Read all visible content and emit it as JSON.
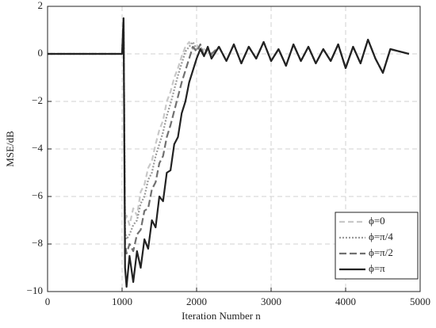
{
  "chart_data": {
    "type": "line",
    "x_label": "Iteration Number n",
    "y_label": "MSE/dB",
    "x": [
      0,
      1000,
      1020,
      1040,
      1060,
      1100,
      1150,
      1200,
      1250,
      1300,
      1350,
      1400,
      1450,
      1500,
      1550,
      1600,
      1650,
      1700,
      1750,
      1800,
      1850,
      1900,
      1950,
      2000,
      2050,
      2100,
      2150,
      2200,
      2300,
      2400,
      2500,
      2600,
      2700,
      2800,
      2900,
      3000,
      3100,
      3200,
      3300,
      3400,
      3500,
      3600,
      3700,
      3800,
      3900,
      4000,
      4100,
      4200,
      4300,
      4400,
      4500,
      4600,
      4850
    ],
    "series": [
      {
        "name": "ϕ=0",
        "color": "#c8c8c8",
        "dash": "7,4",
        "values": [
          0,
          0,
          1.5,
          -7.0,
          -6.8,
          -7.2,
          -6.5,
          -6.8,
          -5.8,
          -5.5,
          -4.8,
          -4.5,
          -3.8,
          -3.2,
          -2.8,
          -2.0,
          -1.6,
          -1.0,
          -0.6,
          -0.1,
          0.3,
          0.5,
          0.2,
          0.4,
          0.1,
          0.2,
          0.1,
          -0.1,
          0.3,
          -0.3,
          0.4,
          -0.4,
          0.3,
          -0.2,
          0.5,
          -0.3,
          0.2,
          -0.5,
          0.4,
          -0.3,
          0.3,
          -0.4,
          0.2,
          -0.3,
          0.4,
          -0.6,
          0.3,
          -0.4,
          0.6,
          -0.2,
          -0.8,
          0.2,
          0
        ]
      },
      {
        "name": "ϕ=π/4",
        "color": "#9a9a9a",
        "dash": "2,2",
        "values": [
          0,
          0,
          1.5,
          -7.5,
          -7.8,
          -7.6,
          -7.2,
          -7.0,
          -6.3,
          -6.0,
          -5.3,
          -5.0,
          -4.3,
          -3.8,
          -3.3,
          -2.6,
          -2.1,
          -1.5,
          -0.9,
          -0.4,
          0.1,
          0.3,
          0.5,
          0.2,
          0.3,
          0.0,
          0.2,
          -0.1,
          0.3,
          -0.3,
          0.4,
          -0.4,
          0.3,
          -0.2,
          0.5,
          -0.3,
          0.2,
          -0.5,
          0.4,
          -0.3,
          0.3,
          -0.4,
          0.2,
          -0.3,
          0.4,
          -0.6,
          0.3,
          -0.4,
          0.6,
          -0.2,
          -0.8,
          0.2,
          0
        ]
      },
      {
        "name": "ϕ=π/2",
        "color": "#707070",
        "dash": "9,4",
        "values": [
          0,
          0,
          1.5,
          -8.0,
          -8.4,
          -8.0,
          -8.3,
          -7.6,
          -7.4,
          -6.6,
          -6.5,
          -5.7,
          -5.4,
          -4.6,
          -4.3,
          -3.5,
          -3.0,
          -2.4,
          -1.8,
          -1.2,
          -0.7,
          -0.2,
          0.3,
          0.1,
          0.4,
          -0.1,
          0.2,
          0.0,
          0.3,
          -0.3,
          0.4,
          -0.4,
          0.3,
          -0.2,
          0.5,
          -0.3,
          0.2,
          -0.5,
          0.4,
          -0.3,
          0.3,
          -0.4,
          0.2,
          -0.3,
          0.4,
          -0.6,
          0.3,
          -0.4,
          0.6,
          -0.2,
          -0.8,
          0.2,
          0
        ]
      },
      {
        "name": "ϕ=π",
        "color": "#222222",
        "dash": "none",
        "values": [
          0,
          0,
          1.5,
          -9.0,
          -9.8,
          -8.5,
          -9.6,
          -8.3,
          -9.0,
          -7.8,
          -8.2,
          -7.0,
          -7.3,
          -6.0,
          -6.2,
          -5.0,
          -4.9,
          -3.8,
          -3.5,
          -2.5,
          -2.0,
          -1.2,
          -0.7,
          -0.2,
          0.2,
          -0.1,
          0.3,
          -0.2,
          0.3,
          -0.3,
          0.4,
          -0.4,
          0.3,
          -0.2,
          0.5,
          -0.3,
          0.2,
          -0.5,
          0.4,
          -0.3,
          0.3,
          -0.4,
          0.2,
          -0.3,
          0.4,
          -0.6,
          0.3,
          -0.4,
          0.6,
          -0.2,
          -0.8,
          0.2,
          0
        ]
      }
    ],
    "xlim": [
      0,
      5000
    ],
    "xticks": [
      0,
      1000,
      2000,
      3000,
      4000,
      5000
    ],
    "ylim": [
      -10,
      2
    ],
    "yticks": [
      {
        "value": -10,
        "label": "−10"
      },
      {
        "value": -8,
        "label": "−8"
      },
      {
        "value": -6,
        "label": "−6"
      },
      {
        "value": -4,
        "label": "−4"
      },
      {
        "value": -2,
        "label": "−2"
      },
      0,
      2
    ],
    "grid": true,
    "legend": "lower right"
  }
}
